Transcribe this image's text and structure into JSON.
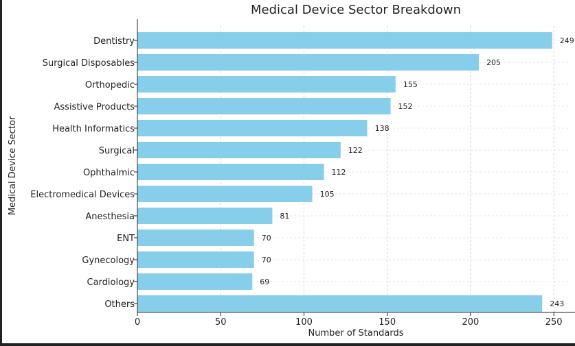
{
  "chart_data": {
    "type": "bar",
    "orientation": "horizontal",
    "title": "Medical Device Sector Breakdown",
    "xlabel": "Number of Standards",
    "ylabel": "Medical Device Sector",
    "xlim": [
      0,
      259
    ],
    "xticks": [
      0,
      50,
      100,
      150,
      200,
      250
    ],
    "grid": true,
    "bar_color": "#87CEEB",
    "categories": [
      "Dentistry",
      "Surgical Disposables",
      "Orthopedic",
      "Assistive Products",
      "Health Informatics",
      "Surgical",
      "Ophthalmic",
      "Electromedical Devices",
      "Anesthesia",
      "ENT",
      "Gynecology",
      "Cardiology",
      "Others"
    ],
    "values": [
      249,
      205,
      155,
      152,
      138,
      122,
      112,
      105,
      81,
      70,
      70,
      69,
      243
    ]
  }
}
